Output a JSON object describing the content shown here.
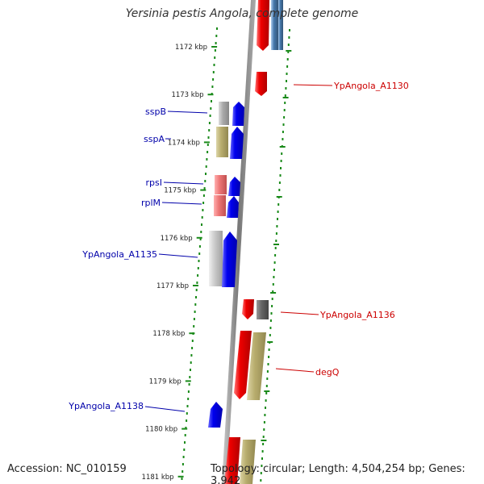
{
  "title": "Yersinia pestis Angola, complete genome",
  "accession": "Accession: NC_010159",
  "summary": "Topology: circular; Length: 4,504,254 bp; Genes: 3,942",
  "colors": {
    "backbone": "#888888",
    "dots": "#1a8a1a",
    "forward_label": "#0000aa",
    "reverse_label": "#cc0000",
    "blue": "#0000ee",
    "red": "#ee0000",
    "grey": "#aaaaaa",
    "olive": "#b8ad6e",
    "pink": "#ee7777",
    "dark_grey": "#666666",
    "steel_blue": "#4477aa"
  },
  "kbp_labels": [
    {
      "text": "1172 kbp",
      "value": 1172
    },
    {
      "text": "1173 kbp",
      "value": 1173
    },
    {
      "text": "1174 kbp",
      "value": 1174
    },
    {
      "text": "1175 kbp",
      "value": 1175
    },
    {
      "text": "1176 kbp",
      "value": 1176
    },
    {
      "text": "1177 kbp",
      "value": 1177
    },
    {
      "text": "1178 kbp",
      "value": 1178
    },
    {
      "text": "1179 kbp",
      "value": 1179
    },
    {
      "text": "1180 kbp",
      "value": 1180
    },
    {
      "text": "1181 kbp",
      "value": 1181
    }
  ],
  "gene_labels": [
    {
      "text": "YpAngola_A1130",
      "strand": "reverse"
    },
    {
      "text": "sspB",
      "strand": "forward"
    },
    {
      "text": "sspA",
      "strand": "forward"
    },
    {
      "text": "rpsI",
      "strand": "forward"
    },
    {
      "text": "rplM",
      "strand": "forward"
    },
    {
      "text": "YpAngola_A1135",
      "strand": "forward"
    },
    {
      "text": "YpAngola_A1136",
      "strand": "reverse"
    },
    {
      "text": "degQ",
      "strand": "reverse"
    },
    {
      "text": "YpAngola_A1138",
      "strand": "forward"
    }
  ]
}
